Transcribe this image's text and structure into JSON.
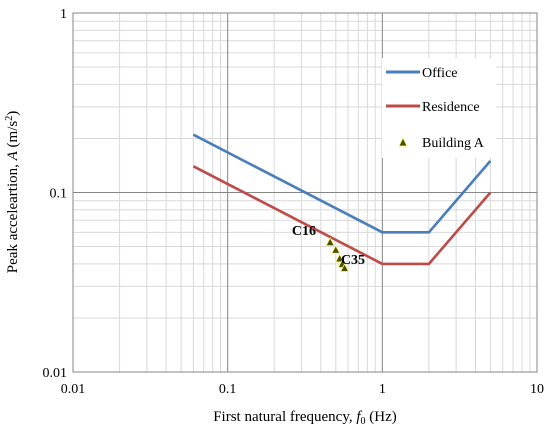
{
  "chart_data": {
    "type": "line",
    "title": "",
    "xlabel": {
      "prefix": "First natural frequency, ",
      "symbol": "f",
      "subscript": "0",
      "suffix": " (Hz)"
    },
    "ylabel": {
      "prefix": "Peak acceleartion, ",
      "symbol": "A",
      "suffix": " (m/s",
      "superscript": "2",
      "close": ")"
    },
    "x_scale": "log",
    "y_scale": "log",
    "xlim": [
      0.01,
      10
    ],
    "ylim": [
      0.01,
      1
    ],
    "x_ticks": [
      {
        "value": 0.01,
        "label": "0.01"
      },
      {
        "value": 0.1,
        "label": "0.1"
      },
      {
        "value": 1,
        "label": "1"
      },
      {
        "value": 10,
        "label": "10"
      }
    ],
    "y_ticks": [
      {
        "value": 0.01,
        "label": "0.01"
      },
      {
        "value": 0.1,
        "label": "0.1"
      },
      {
        "value": 1,
        "label": "1"
      }
    ],
    "grid": true,
    "legend_position": "top-right",
    "series": [
      {
        "name": "Office",
        "kind": "line",
        "color": "#4a7ebb",
        "points": [
          [
            0.06,
            0.21
          ],
          [
            1.0,
            0.06
          ],
          [
            2.0,
            0.06
          ],
          [
            5.0,
            0.15
          ]
        ]
      },
      {
        "name": "Residence",
        "kind": "line",
        "color": "#be4b48",
        "points": [
          [
            0.06,
            0.14
          ],
          [
            1.0,
            0.04
          ],
          [
            2.0,
            0.04
          ],
          [
            5.0,
            0.1
          ]
        ]
      },
      {
        "name": "Building A",
        "kind": "scatter",
        "marker": "triangle",
        "color": "#1a1a00",
        "marker_fill": "#4d4d00",
        "marker_edge": "#ffff66",
        "points": [
          [
            0.46,
            0.053
          ],
          [
            0.5,
            0.048
          ],
          [
            0.53,
            0.043
          ],
          [
            0.55,
            0.04
          ],
          [
            0.57,
            0.038
          ]
        ]
      }
    ],
    "annotations": [
      {
        "text": "C16",
        "x": 0.26,
        "y": 0.058
      },
      {
        "text": "C35",
        "x": 0.54,
        "y": 0.04
      }
    ]
  }
}
